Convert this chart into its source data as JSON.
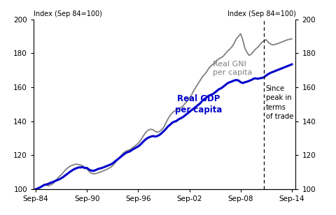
{
  "title": "",
  "ylabel_left": "Index (Sep 84=100)",
  "ylabel_right": "Index (Sep 84=100)",
  "ylim": [
    100,
    200
  ],
  "yticks": [
    100,
    120,
    140,
    160,
    180,
    200
  ],
  "gdp_color": "#0000cc",
  "gni_color": "#808080",
  "gdp_linewidth": 2.2,
  "gni_linewidth": 1.3,
  "vline_x": 2011.5,
  "vline_label": "Since\npeak in\nterms\nof trade",
  "gdp_label": "Real GDP\nper capita",
  "gni_label": "Real GNI\nper capita",
  "xtick_labels": [
    "Sep-84",
    "Sep-90",
    "Sep-96",
    "Sep-02",
    "Sep-08",
    "Sep-14"
  ],
  "xtick_positions": [
    1984.75,
    1990.75,
    1996.75,
    2002.75,
    2008.75,
    2014.75
  ],
  "gdp_data": [
    [
      1984.75,
      100.0
    ],
    [
      1985.0,
      100.5
    ],
    [
      1985.25,
      101.0
    ],
    [
      1985.5,
      101.8
    ],
    [
      1985.75,
      102.5
    ],
    [
      1986.0,
      102.8
    ],
    [
      1986.25,
      103.2
    ],
    [
      1986.5,
      103.8
    ],
    [
      1986.75,
      104.2
    ],
    [
      1987.0,
      104.8
    ],
    [
      1987.25,
      105.3
    ],
    [
      1987.5,
      105.8
    ],
    [
      1987.75,
      106.5
    ],
    [
      1988.0,
      107.3
    ],
    [
      1988.25,
      108.3
    ],
    [
      1988.5,
      109.2
    ],
    [
      1988.75,
      110.2
    ],
    [
      1989.0,
      111.0
    ],
    [
      1989.25,
      111.8
    ],
    [
      1989.5,
      112.3
    ],
    [
      1989.75,
      112.8
    ],
    [
      1990.0,
      112.8
    ],
    [
      1990.25,
      113.0
    ],
    [
      1990.5,
      112.5
    ],
    [
      1990.75,
      112.5
    ],
    [
      1991.0,
      111.5
    ],
    [
      1991.25,
      111.0
    ],
    [
      1991.5,
      110.8
    ],
    [
      1991.75,
      111.2
    ],
    [
      1992.0,
      111.8
    ],
    [
      1992.25,
      112.2
    ],
    [
      1992.5,
      112.5
    ],
    [
      1992.75,
      113.0
    ],
    [
      1993.0,
      113.5
    ],
    [
      1993.25,
      114.0
    ],
    [
      1993.5,
      114.5
    ],
    [
      1993.75,
      115.2
    ],
    [
      1994.0,
      116.2
    ],
    [
      1994.25,
      117.2
    ],
    [
      1994.5,
      118.2
    ],
    [
      1994.75,
      119.2
    ],
    [
      1995.0,
      120.2
    ],
    [
      1995.25,
      121.2
    ],
    [
      1995.5,
      121.8
    ],
    [
      1995.75,
      122.2
    ],
    [
      1996.0,
      123.0
    ],
    [
      1996.25,
      123.8
    ],
    [
      1996.5,
      124.5
    ],
    [
      1996.75,
      125.2
    ],
    [
      1997.0,
      126.2
    ],
    [
      1997.25,
      127.5
    ],
    [
      1997.5,
      128.8
    ],
    [
      1997.75,
      129.8
    ],
    [
      1998.0,
      130.5
    ],
    [
      1998.25,
      131.0
    ],
    [
      1998.5,
      131.3
    ],
    [
      1998.75,
      131.0
    ],
    [
      1999.0,
      131.3
    ],
    [
      1999.25,
      132.0
    ],
    [
      1999.5,
      133.0
    ],
    [
      1999.75,
      134.2
    ],
    [
      2000.0,
      135.5
    ],
    [
      2000.25,
      137.0
    ],
    [
      2000.5,
      138.0
    ],
    [
      2000.75,
      139.2
    ],
    [
      2001.0,
      139.8
    ],
    [
      2001.25,
      140.2
    ],
    [
      2001.5,
      141.2
    ],
    [
      2001.75,
      141.8
    ],
    [
      2002.0,
      142.5
    ],
    [
      2002.25,
      143.5
    ],
    [
      2002.5,
      144.5
    ],
    [
      2002.75,
      145.5
    ],
    [
      2003.0,
      146.5
    ],
    [
      2003.25,
      147.5
    ],
    [
      2003.5,
      148.5
    ],
    [
      2003.75,
      149.5
    ],
    [
      2004.0,
      150.5
    ],
    [
      2004.25,
      152.0
    ],
    [
      2004.5,
      153.0
    ],
    [
      2004.75,
      154.0
    ],
    [
      2005.0,
      155.0
    ],
    [
      2005.25,
      155.5
    ],
    [
      2005.5,
      156.0
    ],
    [
      2005.75,
      157.0
    ],
    [
      2006.0,
      158.0
    ],
    [
      2006.25,
      159.0
    ],
    [
      2006.5,
      159.5
    ],
    [
      2006.75,
      160.5
    ],
    [
      2007.0,
      161.5
    ],
    [
      2007.25,
      162.5
    ],
    [
      2007.5,
      163.0
    ],
    [
      2007.75,
      163.5
    ],
    [
      2008.0,
      164.0
    ],
    [
      2008.25,
      164.3
    ],
    [
      2008.5,
      164.0
    ],
    [
      2008.75,
      163.0
    ],
    [
      2009.0,
      162.5
    ],
    [
      2009.25,
      163.0
    ],
    [
      2009.5,
      163.3
    ],
    [
      2009.75,
      163.8
    ],
    [
      2010.0,
      164.3
    ],
    [
      2010.25,
      165.0
    ],
    [
      2010.5,
      165.3
    ],
    [
      2010.75,
      165.0
    ],
    [
      2011.0,
      165.3
    ],
    [
      2011.25,
      165.5
    ],
    [
      2011.5,
      166.0
    ],
    [
      2011.75,
      167.0
    ],
    [
      2012.0,
      167.8
    ],
    [
      2012.25,
      168.5
    ],
    [
      2012.5,
      169.0
    ],
    [
      2012.75,
      169.5
    ],
    [
      2013.0,
      170.0
    ],
    [
      2013.25,
      170.5
    ],
    [
      2013.5,
      171.0
    ],
    [
      2013.75,
      171.5
    ],
    [
      2014.0,
      172.0
    ],
    [
      2014.25,
      172.5
    ],
    [
      2014.5,
      173.0
    ],
    [
      2014.75,
      173.5
    ]
  ],
  "gni_data": [
    [
      1984.75,
      100.0
    ],
    [
      1985.0,
      100.5
    ],
    [
      1985.25,
      101.2
    ],
    [
      1985.5,
      102.0
    ],
    [
      1985.75,
      102.8
    ],
    [
      1986.0,
      102.3
    ],
    [
      1986.25,
      102.0
    ],
    [
      1986.5,
      102.5
    ],
    [
      1986.75,
      103.2
    ],
    [
      1987.0,
      104.5
    ],
    [
      1987.25,
      106.0
    ],
    [
      1987.5,
      107.5
    ],
    [
      1987.75,
      108.5
    ],
    [
      1988.0,
      110.0
    ],
    [
      1988.25,
      111.5
    ],
    [
      1988.5,
      112.5
    ],
    [
      1988.75,
      113.5
    ],
    [
      1989.0,
      114.0
    ],
    [
      1989.25,
      114.5
    ],
    [
      1989.5,
      114.8
    ],
    [
      1989.75,
      114.5
    ],
    [
      1990.0,
      114.2
    ],
    [
      1990.25,
      113.8
    ],
    [
      1990.5,
      112.5
    ],
    [
      1990.75,
      112.0
    ],
    [
      1991.0,
      110.5
    ],
    [
      1991.25,
      109.5
    ],
    [
      1991.5,
      109.0
    ],
    [
      1991.75,
      109.2
    ],
    [
      1992.0,
      109.5
    ],
    [
      1992.25,
      110.0
    ],
    [
      1992.5,
      110.5
    ],
    [
      1992.75,
      111.0
    ],
    [
      1993.0,
      111.5
    ],
    [
      1993.25,
      112.2
    ],
    [
      1993.5,
      112.8
    ],
    [
      1993.75,
      113.8
    ],
    [
      1994.0,
      115.2
    ],
    [
      1994.25,
      116.8
    ],
    [
      1994.5,
      118.2
    ],
    [
      1994.75,
      119.8
    ],
    [
      1995.0,
      121.2
    ],
    [
      1995.25,
      122.2
    ],
    [
      1995.5,
      122.8
    ],
    [
      1995.75,
      123.2
    ],
    [
      1996.0,
      124.0
    ],
    [
      1996.25,
      125.0
    ],
    [
      1996.5,
      126.0
    ],
    [
      1996.75,
      127.0
    ],
    [
      1997.0,
      128.5
    ],
    [
      1997.25,
      130.5
    ],
    [
      1997.5,
      132.5
    ],
    [
      1997.75,
      134.0
    ],
    [
      1998.0,
      135.0
    ],
    [
      1998.25,
      135.3
    ],
    [
      1998.5,
      135.0
    ],
    [
      1998.75,
      134.0
    ],
    [
      1999.0,
      133.5
    ],
    [
      1999.25,
      134.0
    ],
    [
      1999.5,
      135.0
    ],
    [
      1999.75,
      136.5
    ],
    [
      2000.0,
      139.0
    ],
    [
      2000.25,
      141.5
    ],
    [
      2000.5,
      143.5
    ],
    [
      2000.75,
      145.0
    ],
    [
      2001.0,
      146.0
    ],
    [
      2001.25,
      146.5
    ],
    [
      2001.5,
      147.5
    ],
    [
      2001.75,
      148.0
    ],
    [
      2002.0,
      149.0
    ],
    [
      2002.25,
      150.5
    ],
    [
      2002.5,
      152.0
    ],
    [
      2002.75,
      153.5
    ],
    [
      2003.0,
      155.5
    ],
    [
      2003.25,
      158.0
    ],
    [
      2003.5,
      160.0
    ],
    [
      2003.75,
      162.0
    ],
    [
      2004.0,
      164.0
    ],
    [
      2004.25,
      166.0
    ],
    [
      2004.5,
      167.5
    ],
    [
      2004.75,
      169.0
    ],
    [
      2005.0,
      171.0
    ],
    [
      2005.25,
      172.5
    ],
    [
      2005.5,
      173.5
    ],
    [
      2005.75,
      174.5
    ],
    [
      2006.0,
      176.0
    ],
    [
      2006.25,
      177.0
    ],
    [
      2006.5,
      177.5
    ],
    [
      2006.75,
      178.5
    ],
    [
      2007.0,
      180.0
    ],
    [
      2007.25,
      181.5
    ],
    [
      2007.5,
      182.5
    ],
    [
      2007.75,
      184.0
    ],
    [
      2008.0,
      186.0
    ],
    [
      2008.25,
      188.5
    ],
    [
      2008.5,
      190.0
    ],
    [
      2008.75,
      191.5
    ],
    [
      2009.0,
      188.0
    ],
    [
      2009.25,
      183.0
    ],
    [
      2009.5,
      180.5
    ],
    [
      2009.75,
      178.8
    ],
    [
      2010.0,
      179.5
    ],
    [
      2010.25,
      181.0
    ],
    [
      2010.5,
      182.5
    ],
    [
      2010.75,
      183.5
    ],
    [
      2011.0,
      185.0
    ],
    [
      2011.25,
      186.5
    ],
    [
      2011.5,
      187.5
    ],
    [
      2011.75,
      188.0
    ],
    [
      2012.0,
      186.5
    ],
    [
      2012.25,
      185.5
    ],
    [
      2012.5,
      185.0
    ],
    [
      2012.75,
      185.2
    ],
    [
      2013.0,
      185.5
    ],
    [
      2013.25,
      186.0
    ],
    [
      2013.5,
      186.5
    ],
    [
      2013.75,
      187.0
    ],
    [
      2014.0,
      187.5
    ],
    [
      2014.25,
      188.0
    ],
    [
      2014.5,
      188.3
    ],
    [
      2014.75,
      188.5
    ]
  ]
}
